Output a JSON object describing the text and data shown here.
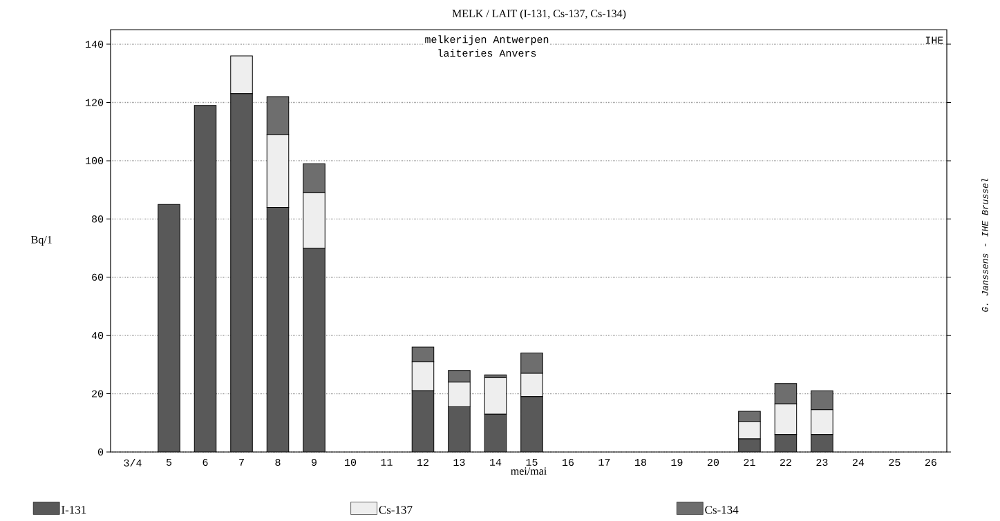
{
  "chart_data": {
    "type": "bar",
    "stacked": true,
    "title": "MELK / LAIT (I-131, Cs-137, Cs-134)",
    "xlabel": "mei/mai",
    "ylabel": "Bq/1",
    "categories": [
      "3/4",
      "5",
      "6",
      "7",
      "8",
      "9",
      "10",
      "11",
      "12",
      "13",
      "14",
      "15",
      "16",
      "17",
      "18",
      "19",
      "20",
      "21",
      "22",
      "23",
      "24",
      "25",
      "26"
    ],
    "series": [
      {
        "name": "I-131",
        "color": "#595959",
        "values": [
          null,
          85,
          119,
          123,
          84,
          70,
          null,
          null,
          21,
          15.5,
          13,
          19,
          null,
          null,
          null,
          null,
          null,
          4.5,
          6,
          6,
          null,
          null,
          null
        ]
      },
      {
        "name": "Cs-137",
        "color": "#eeeeee",
        "values": [
          null,
          0,
          0,
          13,
          25,
          19,
          null,
          null,
          10,
          8.5,
          12.5,
          8,
          null,
          null,
          null,
          null,
          null,
          6,
          10.5,
          8.5,
          null,
          null,
          null
        ]
      },
      {
        "name": "Cs-134",
        "color": "#6e6e6e",
        "values": [
          null,
          0,
          0,
          0,
          13,
          10,
          null,
          null,
          5,
          4,
          1,
          7,
          null,
          null,
          null,
          null,
          null,
          3.5,
          7,
          6.5,
          null,
          null,
          null
        ]
      }
    ],
    "ylim": [
      0,
      145
    ],
    "yticks": [
      0,
      20,
      40,
      60,
      80,
      100,
      120,
      140
    ],
    "grid": "y",
    "legend": "bottom",
    "annotations": [
      "melkerijen Antwerpen",
      "laiteries Anvers",
      "IHE",
      "G. Janssens - IHE Brussel"
    ]
  }
}
